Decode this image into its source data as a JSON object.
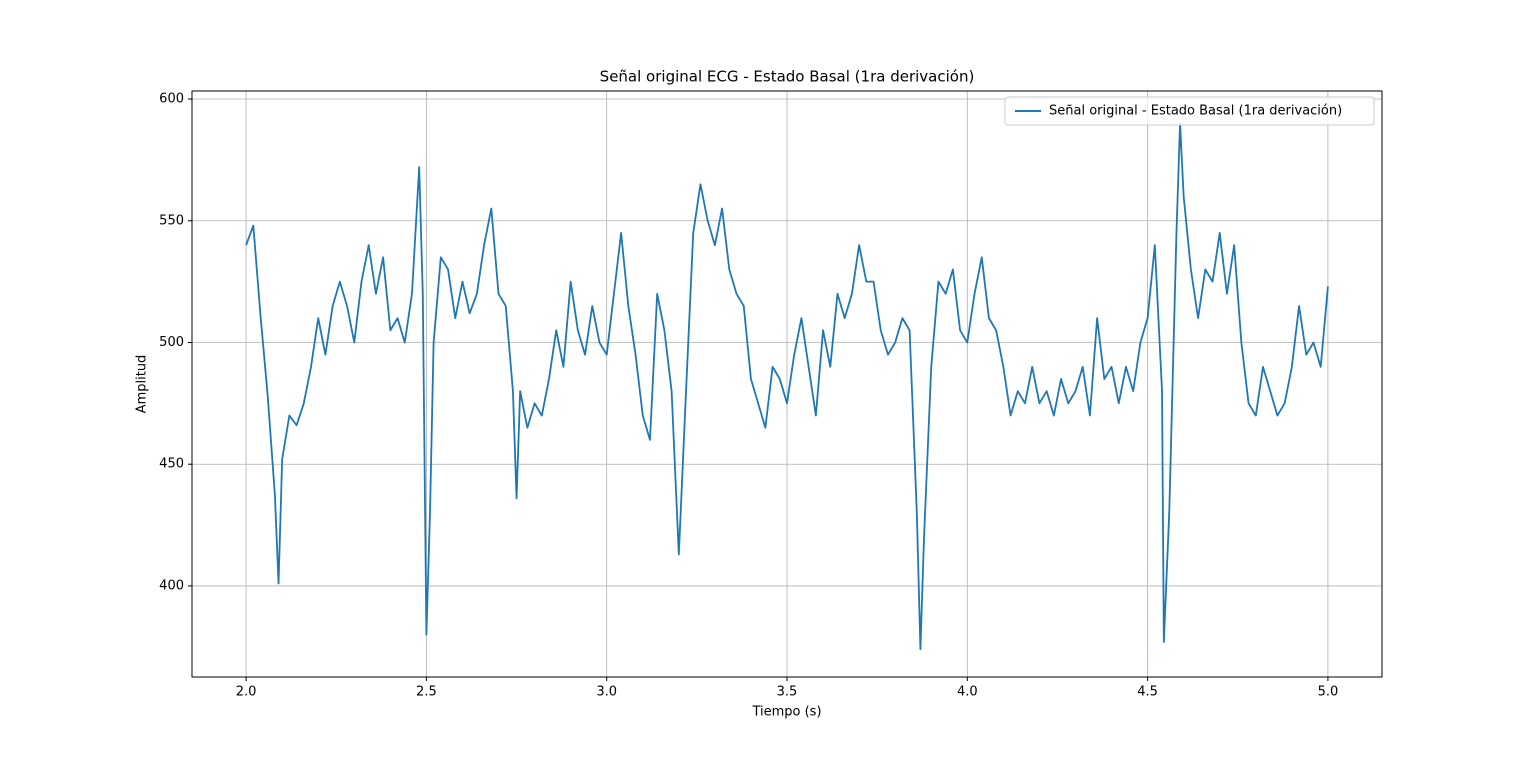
{
  "chart_data": {
    "type": "line",
    "title": "Señal original ECG - Estado Basal (1ra derivación)",
    "x_label": "Tiempo (s)",
    "y_label": "Amplitud",
    "x": [
      2.0,
      2.02,
      2.04,
      2.06,
      2.08,
      2.09,
      2.1,
      2.12,
      2.14,
      2.16,
      2.18,
      2.2,
      2.22,
      2.24,
      2.26,
      2.28,
      2.3,
      2.32,
      2.34,
      2.36,
      2.38,
      2.4,
      2.42,
      2.44,
      2.46,
      2.48,
      2.49,
      2.5,
      2.51,
      2.52,
      2.54,
      2.56,
      2.58,
      2.6,
      2.62,
      2.64,
      2.66,
      2.68,
      2.7,
      2.72,
      2.74,
      2.75,
      2.76,
      2.78,
      2.8,
      2.82,
      2.84,
      2.86,
      2.88,
      2.9,
      2.92,
      2.94,
      2.96,
      2.98,
      3.0,
      3.02,
      3.04,
      3.06,
      3.08,
      3.1,
      3.12,
      3.14,
      3.16,
      3.18,
      3.2,
      3.22,
      3.24,
      3.26,
      3.28,
      3.3,
      3.32,
      3.34,
      3.36,
      3.38,
      3.4,
      3.42,
      3.44,
      3.46,
      3.48,
      3.5,
      3.52,
      3.54,
      3.56,
      3.58,
      3.6,
      3.62,
      3.64,
      3.66,
      3.68,
      3.7,
      3.72,
      3.74,
      3.76,
      3.78,
      3.8,
      3.82,
      3.84,
      3.86,
      3.87,
      3.88,
      3.9,
      3.92,
      3.94,
      3.96,
      3.98,
      4.0,
      4.02,
      4.04,
      4.06,
      4.08,
      4.1,
      4.12,
      4.14,
      4.16,
      4.18,
      4.2,
      4.22,
      4.24,
      4.26,
      4.28,
      4.3,
      4.32,
      4.34,
      4.36,
      4.38,
      4.4,
      4.42,
      4.44,
      4.46,
      4.48,
      4.5,
      4.52,
      4.54,
      4.545,
      4.56,
      4.58,
      4.59,
      4.6,
      4.62,
      4.64,
      4.66,
      4.68,
      4.7,
      4.72,
      4.74,
      4.76,
      4.78,
      4.8,
      4.82,
      4.84,
      4.86,
      4.88,
      4.9,
      4.92,
      4.94,
      4.96,
      4.98,
      5.0
    ],
    "series": [
      {
        "name": "Señal original - Estado Basal (1ra derivación)",
        "color": "#1f77b4",
        "values": [
          540,
          548,
          511,
          478,
          437,
          401,
          452,
          470,
          466,
          475,
          490,
          510,
          495,
          515,
          525,
          515,
          500,
          525,
          540,
          520,
          535,
          505,
          510,
          500,
          520,
          572,
          520,
          380,
          430,
          500,
          535,
          530,
          510,
          525,
          512,
          520,
          540,
          555,
          520,
          515,
          480,
          436,
          480,
          465,
          475,
          470,
          485,
          505,
          490,
          525,
          505,
          495,
          515,
          500,
          495,
          520,
          545,
          515,
          495,
          470,
          460,
          520,
          505,
          480,
          413,
          480,
          545,
          565,
          550,
          540,
          555,
          530,
          520,
          515,
          485,
          475,
          465,
          490,
          485,
          475,
          495,
          510,
          490,
          470,
          505,
          490,
          520,
          510,
          520,
          540,
          525,
          525,
          505,
          495,
          500,
          510,
          505,
          430,
          374,
          420,
          490,
          525,
          520,
          530,
          505,
          500,
          520,
          535,
          510,
          505,
          490,
          470,
          480,
          475,
          490,
          475,
          480,
          470,
          485,
          475,
          480,
          490,
          470,
          510,
          485,
          490,
          475,
          490,
          480,
          500,
          510,
          540,
          480,
          377,
          430,
          545,
          590,
          560,
          530,
          510,
          530,
          525,
          545,
          520,
          540,
          500,
          475,
          470,
          490,
          480,
          470,
          475,
          490,
          515,
          495,
          500,
          490,
          523
        ]
      }
    ],
    "xlim": [
      1.85,
      5.15
    ],
    "ylim": [
      362.6,
      603.3
    ],
    "xticks": [
      {
        "value": 2,
        "label": "2.0"
      },
      2.5,
      {
        "value": 3,
        "label": "3.0"
      },
      3.5,
      {
        "value": 4,
        "label": "4.0"
      },
      4.5,
      {
        "value": 5,
        "label": "5.0"
      }
    ],
    "yticks": [
      400,
      450,
      500,
      550,
      600
    ],
    "grid": true,
    "legend": "upper right"
  }
}
